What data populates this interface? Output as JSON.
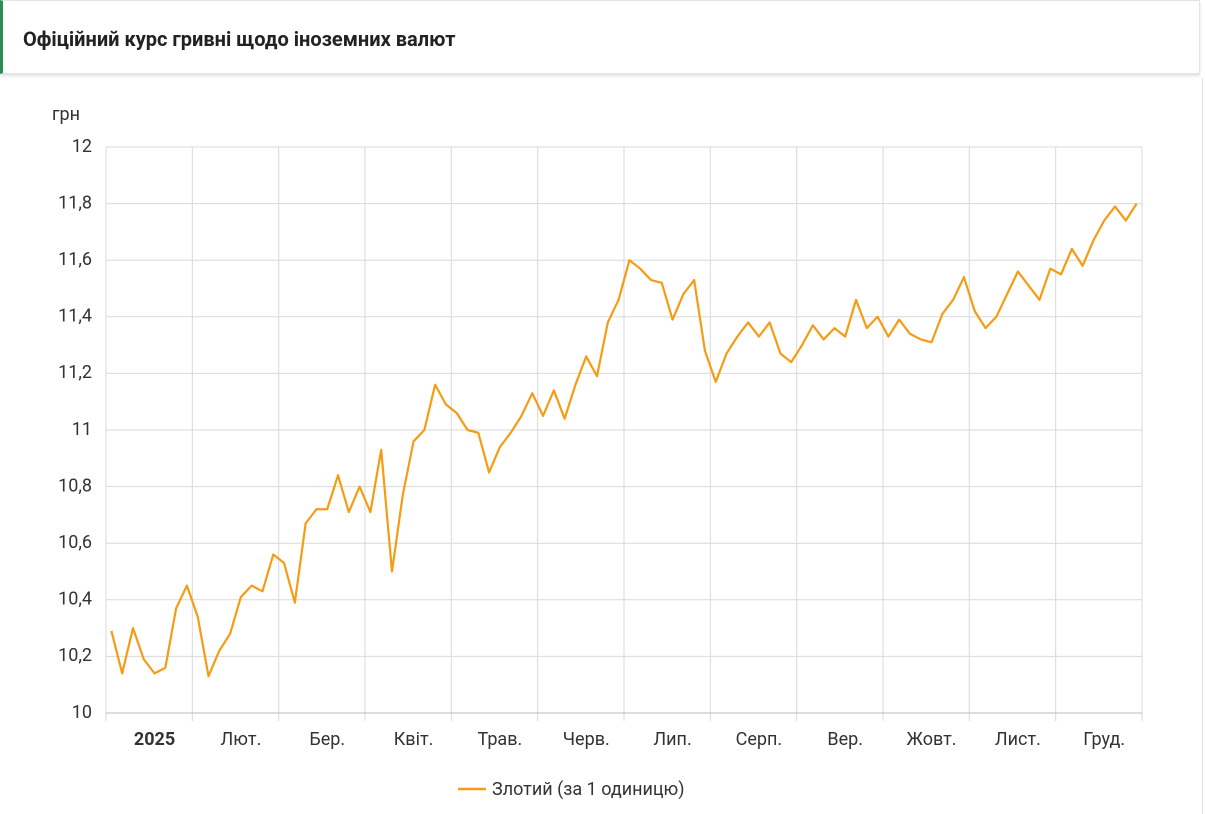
{
  "header": {
    "title": "Офіційний курс гривні щодо іноземних валют"
  },
  "chart_data": {
    "type": "line",
    "y_label": "грн",
    "categories": [
      null,
      null,
      null,
      null,
      "2025",
      null,
      null,
      null,
      null,
      null,
      null,
      null,
      "Лют.",
      null,
      null,
      null,
      null,
      null,
      null,
      null,
      "Бер.",
      null,
      null,
      null,
      null,
      null,
      null,
      null,
      "Квіт.",
      null,
      null,
      null,
      null,
      null,
      null,
      null,
      "Трав.",
      null,
      null,
      null,
      null,
      null,
      null,
      null,
      "Черв.",
      null,
      null,
      null,
      null,
      null,
      null,
      null,
      "Лип.",
      null,
      null,
      null,
      null,
      null,
      null,
      null,
      "Серп.",
      null,
      null,
      null,
      null,
      null,
      null,
      null,
      "Вер.",
      null,
      null,
      null,
      null,
      null,
      null,
      null,
      "Жовт.",
      null,
      null,
      null,
      null,
      null,
      null,
      null,
      "Лист.",
      null,
      null,
      null,
      null,
      null,
      null,
      null,
      "Груд.",
      null,
      null,
      null
    ],
    "series": [
      {
        "name": "Злотий (за 1 одиницю)",
        "color": "#f59c14",
        "values": [
          10.29,
          10.14,
          10.3,
          10.19,
          10.14,
          10.16,
          10.37,
          10.45,
          10.34,
          10.13,
          10.22,
          10.28,
          10.41,
          10.45,
          10.43,
          10.56,
          10.53,
          10.39,
          10.67,
          10.72,
          10.72,
          10.84,
          10.71,
          10.8,
          10.71,
          10.93,
          10.5,
          10.77,
          10.96,
          11.0,
          11.16,
          11.09,
          11.06,
          11.0,
          10.99,
          10.85,
          10.94,
          10.99,
          11.05,
          11.13,
          11.05,
          11.14,
          11.04,
          11.16,
          11.26,
          11.19,
          11.38,
          11.46,
          11.6,
          11.57,
          11.53,
          11.52,
          11.39,
          11.48,
          11.53,
          11.28,
          11.17,
          11.27,
          11.33,
          11.38,
          11.33,
          11.38,
          11.27,
          11.24,
          11.3,
          11.37,
          11.32,
          11.36,
          11.33,
          11.46,
          11.36,
          11.4,
          11.33,
          11.39,
          11.34,
          11.32,
          11.31,
          11.41,
          11.46,
          11.54,
          11.42,
          11.36,
          11.4,
          11.48,
          11.56,
          11.51,
          11.46,
          11.57,
          11.55,
          11.64,
          11.58,
          11.67,
          11.74,
          11.79,
          11.74,
          11.8
        ]
      }
    ],
    "ylim": [
      10,
      12
    ],
    "yticks": [
      10,
      {
        "value": 10.2,
        "label": "10,2"
      },
      {
        "value": 10.4,
        "label": "10,4"
      },
      {
        "value": 10.6,
        "label": "10,6"
      },
      {
        "value": 10.8,
        "label": "10,8"
      },
      11,
      {
        "value": 11.2,
        "label": "11,2"
      },
      {
        "value": 11.4,
        "label": "11,4"
      },
      {
        "value": 11.6,
        "label": "11,6"
      },
      {
        "value": 11.8,
        "label": "11,8"
      },
      12
    ],
    "grid": true
  }
}
